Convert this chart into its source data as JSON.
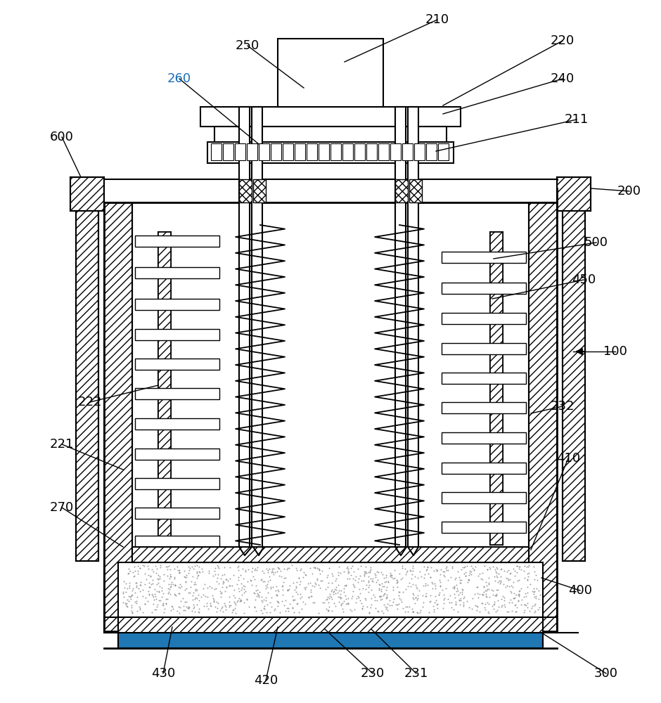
{
  "bg_color": "#ffffff",
  "annotations": [
    [
      "100",
      875,
      500,
      815,
      500,
      true
    ],
    [
      "200",
      895,
      272,
      840,
      268,
      false
    ],
    [
      "210",
      622,
      28,
      490,
      88,
      false
    ],
    [
      "211",
      820,
      170,
      620,
      215,
      false
    ],
    [
      "220",
      800,
      58,
      630,
      150,
      false
    ],
    [
      "221",
      88,
      632,
      175,
      668,
      false
    ],
    [
      "222",
      128,
      572,
      225,
      548,
      false
    ],
    [
      "230",
      530,
      958,
      462,
      895,
      false
    ],
    [
      "231",
      592,
      958,
      528,
      895,
      false
    ],
    [
      "232",
      800,
      578,
      755,
      588,
      false
    ],
    [
      "240",
      800,
      112,
      630,
      162,
      false
    ],
    [
      "250",
      352,
      65,
      432,
      125,
      false
    ],
    [
      "260",
      255,
      112,
      368,
      205,
      false
    ],
    [
      "270",
      88,
      722,
      175,
      778,
      false
    ],
    [
      "300",
      862,
      958,
      770,
      900,
      false
    ],
    [
      "400",
      825,
      840,
      770,
      822,
      false
    ],
    [
      "410",
      808,
      652,
      755,
      782,
      false
    ],
    [
      "420",
      378,
      968,
      395,
      892,
      false
    ],
    [
      "430",
      232,
      958,
      245,
      892,
      false
    ],
    [
      "450",
      830,
      398,
      700,
      425,
      false
    ],
    [
      "500",
      848,
      345,
      702,
      368,
      false
    ],
    [
      "600",
      88,
      195,
      115,
      252,
      false
    ]
  ],
  "label_260_color": "#1a6fbb"
}
